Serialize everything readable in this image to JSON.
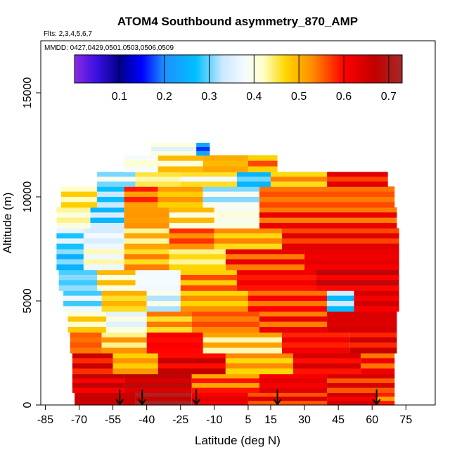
{
  "chart_data": {
    "type": "heatmap",
    "title": "ATOM4 Southbound asymmetry_870_AMP",
    "flights_note": "Flts: 2,3,4,5,6,7",
    "dates_note": "MMDD: 0427,0429,0501,0503,0506,0509",
    "xlabel": "Latitude (deg N)",
    "ylabel": "Altitude (m)",
    "xlim": [
      -87,
      88
    ],
    "ylim": [
      0,
      17500
    ],
    "x_ticks": [
      -85,
      -70,
      -55,
      -40,
      -25,
      -10,
      5,
      15,
      30,
      45,
      60,
      75
    ],
    "x_tick_labels": [
      "-85",
      "-70",
      "-55",
      "-40",
      "-25",
      "-10",
      "5",
      "15",
      "30",
      "45",
      "60",
      "75"
    ],
    "y_ticks": [
      0,
      5000,
      10000,
      15000
    ],
    "y_tick_labels": [
      "0",
      "5000",
      "10000",
      "15000"
    ],
    "colorbar": {
      "range": [
        0.0,
        0.73
      ],
      "ticks": [
        0.1,
        0.2,
        0.3,
        0.4,
        0.5,
        0.6,
        0.7
      ],
      "tick_labels": [
        "0.1",
        "0.2",
        "0.3",
        "0.4",
        "0.5",
        "0.6",
        "0.7"
      ],
      "stops": [
        {
          "value": 0.0,
          "color": "#8a2be2"
        },
        {
          "value": 0.05,
          "color": "#3a10e0"
        },
        {
          "value": 0.1,
          "color": "#00008b"
        },
        {
          "value": 0.15,
          "color": "#0000ff"
        },
        {
          "value": 0.2,
          "color": "#1e90ff"
        },
        {
          "value": 0.27,
          "color": "#00bfff"
        },
        {
          "value": 0.33,
          "color": "#cce8ff"
        },
        {
          "value": 0.38,
          "color": "#f5fbff"
        },
        {
          "value": 0.42,
          "color": "#ffffcc"
        },
        {
          "value": 0.47,
          "color": "#ffd700"
        },
        {
          "value": 0.53,
          "color": "#ff8c00"
        },
        {
          "value": 0.6,
          "color": "#ff0000"
        },
        {
          "value": 0.67,
          "color": "#c00000"
        },
        {
          "value": 0.73,
          "color": "#a52a2a"
        }
      ]
    },
    "profile_bands_description": "Approximate asymmetry field by altitude band (m) and latitude segment (deg N)",
    "profile_bands": [
      {
        "alt": [
          0,
          600
        ],
        "segments": [
          {
            "lat": [
              -72,
              -45
            ],
            "value": 0.66
          },
          {
            "lat": [
              -45,
              -20
            ],
            "value": 0.7
          },
          {
            "lat": [
              -20,
              5
            ],
            "value": 0.62
          },
          {
            "lat": [
              5,
              40
            ],
            "value": 0.6
          },
          {
            "lat": [
              40,
              62
            ],
            "value": 0.63
          },
          {
            "lat": [
              62,
              70
            ],
            "value": 0.55
          }
        ]
      },
      {
        "alt": [
          600,
          1500
        ],
        "segments": [
          {
            "lat": [
              -73,
              -50
            ],
            "value": 0.64
          },
          {
            "lat": [
              -50,
              -20
            ],
            "value": 0.66
          },
          {
            "lat": [
              -20,
              10
            ],
            "value": 0.55
          },
          {
            "lat": [
              10,
              40
            ],
            "value": 0.62
          },
          {
            "lat": [
              40,
              70
            ],
            "value": 0.6
          }
        ]
      },
      {
        "alt": [
          1500,
          2500
        ],
        "segments": [
          {
            "lat": [
              -73,
              -55
            ],
            "value": 0.62
          },
          {
            "lat": [
              -55,
              -35
            ],
            "value": 0.5
          },
          {
            "lat": [
              -35,
              -5
            ],
            "value": 0.63
          },
          {
            "lat": [
              -5,
              25
            ],
            "value": 0.5
          },
          {
            "lat": [
              25,
              55
            ],
            "value": 0.62
          },
          {
            "lat": [
              55,
              70
            ],
            "value": 0.58
          }
        ]
      },
      {
        "alt": [
          2500,
          3500
        ],
        "segments": [
          {
            "lat": [
              -74,
              -60
            ],
            "value": 0.55
          },
          {
            "lat": [
              -60,
              -40
            ],
            "value": 0.48
          },
          {
            "lat": [
              -40,
              -15
            ],
            "value": 0.6
          },
          {
            "lat": [
              -15,
              20
            ],
            "value": 0.47
          },
          {
            "lat": [
              20,
              50
            ],
            "value": 0.6
          },
          {
            "lat": [
              50,
              71
            ],
            "value": 0.62
          }
        ]
      },
      {
        "alt": [
          3500,
          4500
        ],
        "segments": [
          {
            "lat": [
              -75,
              -58
            ],
            "value": 0.45
          },
          {
            "lat": [
              -58,
              -40
            ],
            "value": 0.38
          },
          {
            "lat": [
              -40,
              -20
            ],
            "value": 0.5
          },
          {
            "lat": [
              -20,
              10
            ],
            "value": 0.55
          },
          {
            "lat": [
              10,
              40
            ],
            "value": 0.58
          },
          {
            "lat": [
              40,
              71
            ],
            "value": 0.64
          }
        ]
      },
      {
        "alt": [
          4500,
          5500
        ],
        "segments": [
          {
            "lat": [
              -77,
              -60
            ],
            "value": 0.33
          },
          {
            "lat": [
              -60,
              -40
            ],
            "value": 0.48
          },
          {
            "lat": [
              -40,
              -25
            ],
            "value": 0.36
          },
          {
            "lat": [
              -25,
              5
            ],
            "value": 0.5
          },
          {
            "lat": [
              5,
              40
            ],
            "value": 0.57
          },
          {
            "lat": [
              40,
              52
            ],
            "value": 0.3
          },
          {
            "lat": [
              52,
              72
            ],
            "value": 0.63
          }
        ]
      },
      {
        "alt": [
          5500,
          6500
        ],
        "segments": [
          {
            "lat": [
              -79,
              -62
            ],
            "value": 0.3
          },
          {
            "lat": [
              -62,
              -45
            ],
            "value": 0.45
          },
          {
            "lat": [
              -45,
              -25
            ],
            "value": 0.38
          },
          {
            "lat": [
              -25,
              0
            ],
            "value": 0.52
          },
          {
            "lat": [
              0,
              35
            ],
            "value": 0.6
          },
          {
            "lat": [
              35,
              72
            ],
            "value": 0.64
          }
        ]
      },
      {
        "alt": [
          6500,
          7500
        ],
        "segments": [
          {
            "lat": [
              -80,
              -68
            ],
            "value": 0.28
          },
          {
            "lat": [
              -68,
              -50
            ],
            "value": 0.4
          },
          {
            "lat": [
              -50,
              -30
            ],
            "value": 0.5
          },
          {
            "lat": [
              -30,
              -5
            ],
            "value": 0.45
          },
          {
            "lat": [
              -5,
              30
            ],
            "value": 0.58
          },
          {
            "lat": [
              30,
              72
            ],
            "value": 0.62
          }
        ]
      },
      {
        "alt": [
          7500,
          8500
        ],
        "segments": [
          {
            "lat": [
              -80,
              -68
            ],
            "value": 0.32
          },
          {
            "lat": [
              -68,
              -50
            ],
            "value": 0.36
          },
          {
            "lat": [
              -50,
              -30
            ],
            "value": 0.47
          },
          {
            "lat": [
              -30,
              -10
            ],
            "value": 0.55
          },
          {
            "lat": [
              -10,
              20
            ],
            "value": 0.5
          },
          {
            "lat": [
              20,
              72
            ],
            "value": 0.6
          }
        ]
      },
      {
        "alt": [
          8500,
          9500
        ],
        "segments": [
          {
            "lat": [
              -80,
              -65
            ],
            "value": 0.42
          },
          {
            "lat": [
              -65,
              -50
            ],
            "value": 0.3
          },
          {
            "lat": [
              -50,
              -30
            ],
            "value": 0.52
          },
          {
            "lat": [
              -30,
              -10
            ],
            "value": 0.45
          },
          {
            "lat": [
              -10,
              10
            ],
            "value": 0.4
          },
          {
            "lat": [
              10,
              71
            ],
            "value": 0.58
          }
        ]
      },
      {
        "alt": [
          9500,
          10500
        ],
        "segments": [
          {
            "lat": [
              -78,
              -62
            ],
            "value": 0.45
          },
          {
            "lat": [
              -62,
              -50
            ],
            "value": 0.3
          },
          {
            "lat": [
              -50,
              -35
            ],
            "value": 0.55
          },
          {
            "lat": [
              -35,
              -15
            ],
            "value": 0.5
          },
          {
            "lat": [
              -15,
              10
            ],
            "value": 0.35
          },
          {
            "lat": [
              10,
              70
            ],
            "value": 0.55
          }
        ]
      },
      {
        "alt": [
          10500,
          11200
        ],
        "segments": [
          {
            "lat": [
              -62,
              -45
            ],
            "value": 0.35
          },
          {
            "lat": [
              -45,
              -25
            ],
            "value": 0.44
          },
          {
            "lat": [
              -25,
              0
            ],
            "value": 0.42
          },
          {
            "lat": [
              0,
              15
            ],
            "value": 0.28
          },
          {
            "lat": [
              15,
              40
            ],
            "value": 0.5
          },
          {
            "lat": [
              40,
              67
            ],
            "value": 0.6
          }
        ]
      },
      {
        "alt": [
          11200,
          12000
        ],
        "segments": [
          {
            "lat": [
              -50,
              -35
            ],
            "value": 0.4
          },
          {
            "lat": [
              -35,
              -15
            ],
            "value": 0.45
          },
          {
            "lat": [
              -15,
              5
            ],
            "value": 0.5
          },
          {
            "lat": [
              5,
              18
            ],
            "value": 0.52
          }
        ]
      },
      {
        "alt": [
          12000,
          12600
        ],
        "segments": [
          {
            "lat": [
              -38,
              -18
            ],
            "value": 0.38
          },
          {
            "lat": [
              -18,
              -12
            ],
            "value": 0.2
          }
        ]
      }
    ],
    "markers": {
      "type": "arrow-down",
      "lat": [
        -52,
        -42,
        -18,
        18,
        62
      ],
      "description": "Profile locations marked at the surface"
    }
  }
}
